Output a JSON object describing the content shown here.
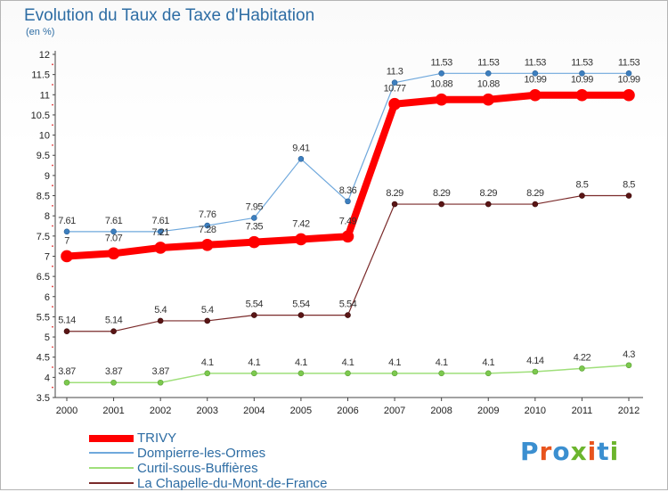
{
  "title": "Evolution du Taux de Taxe d'Habitation",
  "subtitle": "(en %)",
  "logo": {
    "text": "Proxiti",
    "colors": [
      "#3b8fd0",
      "#e8541d",
      "#3b8fd0",
      "#6cb52d",
      "#e8541d",
      "#3b8fd0",
      "#6cb52d"
    ]
  },
  "chart_data": {
    "type": "line",
    "x": [
      "2000",
      "2001",
      "2002",
      "2003",
      "2004",
      "2005",
      "2006",
      "2007",
      "2008",
      "2009",
      "2010",
      "2011",
      "2012"
    ],
    "ylim": [
      3.5,
      12
    ],
    "yticks": [
      "3.5",
      "4",
      "4.5",
      "5",
      "5.5",
      "6",
      "6.5",
      "7",
      "7.5",
      "8",
      "8.5",
      "9",
      "9.5",
      "10",
      "10.5",
      "11",
      "11.5",
      "12"
    ],
    "grid": false,
    "legend": "bottom-left",
    "series": [
      {
        "name": "TRIVY",
        "color": "#ff0000",
        "values": [
          7,
          7.07,
          7.21,
          7.28,
          7.35,
          7.42,
          7.49,
          10.77,
          10.88,
          10.88,
          10.99,
          10.99,
          10.99
        ],
        "labels": [
          "7",
          "7.07",
          "7.21",
          "7.28",
          "7.35",
          "7.42",
          "7.49",
          "10.77",
          "10.88",
          "10.88",
          "10.99",
          "10.99",
          "10.99"
        ]
      },
      {
        "name": "Dompierre-les-Ormes",
        "color": "#6fa8dc",
        "values": [
          7.61,
          7.61,
          7.61,
          7.76,
          7.95,
          9.41,
          8.36,
          11.3,
          11.53,
          11.53,
          11.53,
          11.53,
          11.53
        ],
        "labels": [
          "7.61",
          "7.61",
          "7.61",
          "7.76",
          "7.95",
          "9.41",
          "8.36",
          "11.3",
          "11.53",
          "11.53",
          "11.53",
          "11.53",
          "11.53"
        ]
      },
      {
        "name": "Curtil-sous-Buffières",
        "color": "#9fdf7a",
        "values": [
          3.87,
          3.87,
          3.87,
          4.1,
          4.1,
          4.1,
          4.1,
          4.1,
          4.1,
          4.1,
          4.14,
          4.22,
          4.3
        ],
        "labels": [
          "3.87",
          "3.87",
          "3.87",
          "4.1",
          "4.1",
          "4.1",
          "4.1",
          "4.1",
          "4.1",
          "4.1",
          "4.14",
          "4.22",
          "4.3"
        ]
      },
      {
        "name": "La Chapelle-du-Mont-de-France",
        "color": "#7a2a2a",
        "values": [
          5.14,
          5.14,
          5.4,
          5.4,
          5.54,
          5.54,
          5.54,
          8.29,
          8.29,
          8.29,
          8.29,
          8.5,
          8.5
        ],
        "labels": [
          "5.14",
          "5.14",
          "5.4",
          "5.4",
          "5.54",
          "5.54",
          "5.54",
          "8.29",
          "8.29",
          "8.29",
          "8.29",
          "8.5",
          "8.5"
        ]
      }
    ]
  }
}
